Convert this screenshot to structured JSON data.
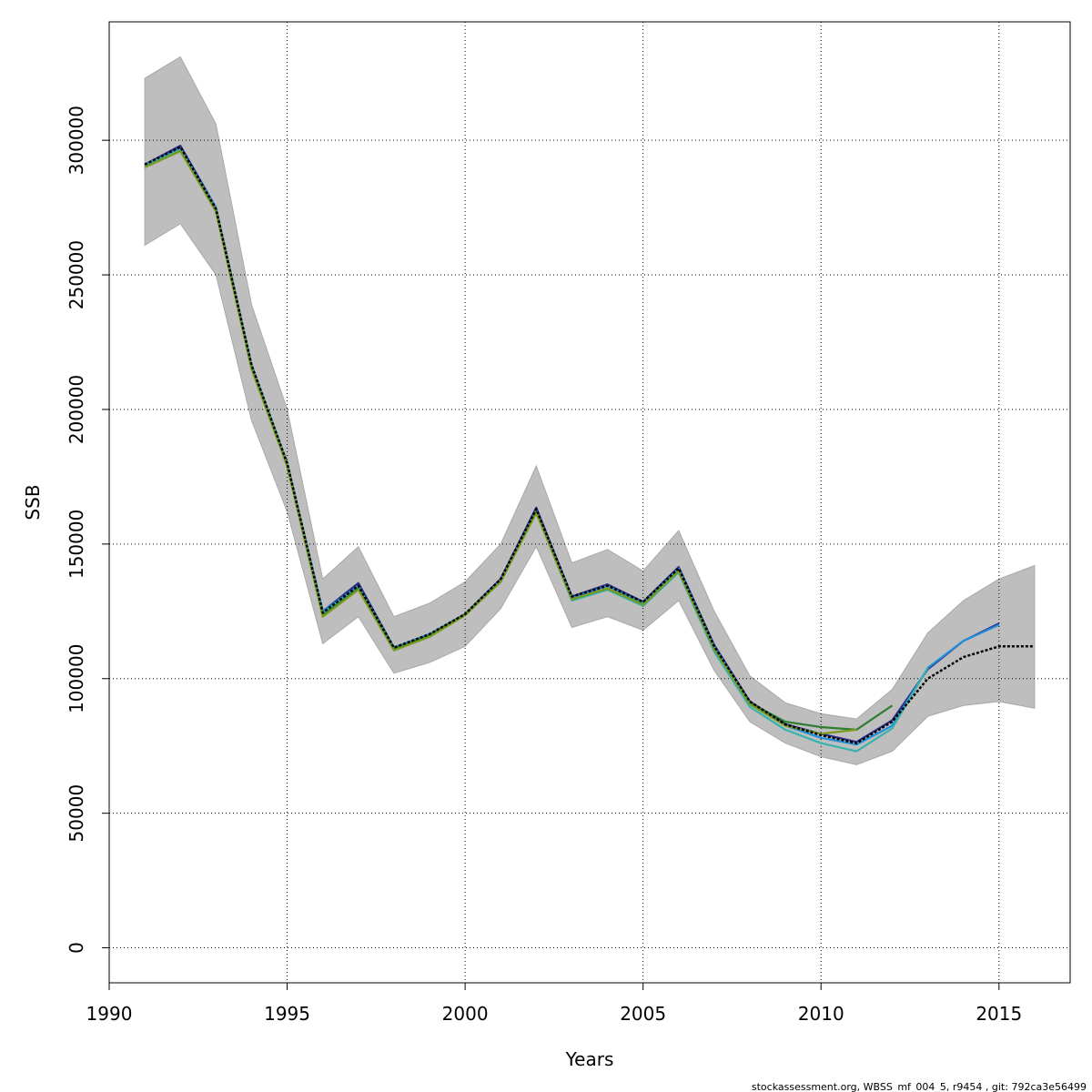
{
  "chart_data": {
    "type": "line",
    "title": "",
    "xlabel": "Years",
    "ylabel": "SSB",
    "xlim": [
      1990,
      2017
    ],
    "ylim": [
      -13000,
      344000
    ],
    "x_ticks": [
      1990,
      1995,
      2000,
      2005,
      2010,
      2015
    ],
    "y_ticks": [
      0,
      50000,
      100000,
      150000,
      200000,
      250000,
      300000
    ],
    "grid": true,
    "grid_style": "dotted",
    "confidence_band": {
      "color": "#bebebe",
      "x": [
        1991,
        1992,
        1993,
        1994,
        1995,
        1996,
        1997,
        1998,
        1999,
        2000,
        2001,
        2002,
        2003,
        2004,
        2005,
        2006,
        2007,
        2008,
        2009,
        2010,
        2011,
        2012,
        2013,
        2014,
        2015,
        2016
      ],
      "lower": [
        261000,
        269000,
        250000,
        196000,
        162000,
        113000,
        123000,
        102000,
        106000,
        112000,
        126000,
        149000,
        119000,
        123000,
        118000,
        129000,
        103000,
        84000,
        76000,
        71000,
        68000,
        73000,
        86000,
        90000,
        91500,
        89000
      ],
      "upper": [
        323000,
        331000,
        306000,
        239000,
        200000,
        137000,
        149000,
        123000,
        128000,
        136000,
        150000,
        179000,
        143000,
        148000,
        140000,
        155000,
        125000,
        101000,
        91000,
        87000,
        85000,
        96000,
        117000,
        129000,
        137000,
        142000
      ]
    },
    "series": [
      {
        "color": "#000000",
        "dashed": true,
        "x": [
          1991,
          1992,
          1993,
          1994,
          1995,
          1996,
          1997,
          1998,
          1999,
          2000,
          2001,
          2002,
          2003,
          2004,
          2005,
          2006,
          2007,
          2008,
          2009,
          2010,
          2011,
          2012,
          2013,
          2014,
          2015,
          2016
        ],
        "values": [
          291000,
          297500,
          274500,
          216500,
          180000,
          124500,
          134500,
          111500,
          116500,
          124000,
          137000,
          163000,
          130500,
          134500,
          128500,
          141000,
          112000,
          91500,
          83000,
          79000,
          76000,
          84000,
          100000,
          108000,
          112000,
          112000
        ]
      },
      {
        "color": "#2b2b8c",
        "dashed": false,
        "x": [
          1991,
          1992,
          1993,
          1994,
          1995,
          1996,
          1997,
          1998,
          1999,
          2000,
          2001,
          2002,
          2003,
          2004,
          2005,
          2006,
          2007,
          2008,
          2009,
          2010,
          2011,
          2012,
          2013,
          2014,
          2015
        ],
        "values": [
          291000,
          298000,
          275000,
          216500,
          180000,
          125000,
          135500,
          111500,
          116500,
          124000,
          137000,
          163500,
          130500,
          135000,
          128500,
          141500,
          112500,
          91500,
          83000,
          79500,
          76500,
          84500,
          103500,
          114000,
          120500
        ]
      },
      {
        "color": "#1e8fd8",
        "dashed": false,
        "x": [
          1991,
          1992,
          1993,
          1994,
          1995,
          1996,
          1997,
          1998,
          1999,
          2000,
          2001,
          2002,
          2003,
          2004,
          2005,
          2006,
          2007,
          2008,
          2009,
          2010,
          2011,
          2012,
          2013,
          2014,
          2015
        ],
        "values": [
          291000,
          297000,
          275000,
          216500,
          180000,
          125000,
          134500,
          111500,
          116500,
          124000,
          136500,
          162500,
          130000,
          134500,
          128000,
          141000,
          112000,
          91000,
          82500,
          78000,
          75500,
          82500,
          104000,
          114000,
          120000
        ]
      },
      {
        "color": "#38b2ad",
        "dashed": false,
        "x": [
          1991,
          1992,
          1993,
          1994,
          1995,
          1996,
          1997,
          1998,
          1999,
          2000,
          2001,
          2002,
          2003,
          2004,
          2005,
          2006,
          2007,
          2008,
          2009,
          2010,
          2011,
          2012,
          2013
        ],
        "values": [
          290500,
          296500,
          274500,
          216000,
          179500,
          124000,
          134000,
          111000,
          116000,
          124000,
          136000,
          162000,
          129000,
          133000,
          127000,
          139500,
          110000,
          89500,
          81000,
          76000,
          73000,
          81500,
          104000
        ]
      },
      {
        "color": "#2e7d32",
        "dashed": false,
        "x": [
          1991,
          1992,
          1993,
          1994,
          1995,
          1996,
          1997,
          1998,
          1999,
          2000,
          2001,
          2002,
          2003,
          2004,
          2005,
          2006,
          2007,
          2008,
          2009,
          2010,
          2011,
          2012
        ],
        "values": [
          290000,
          296000,
          274000,
          215500,
          179000,
          123500,
          133500,
          111000,
          116000,
          124000,
          136000,
          162000,
          129500,
          133500,
          127500,
          140000,
          111000,
          91000,
          84000,
          82000,
          81000,
          90000
        ]
      },
      {
        "color": "#7a9a1a",
        "dashed": false,
        "x": [
          1991,
          1992,
          1993,
          1994,
          1995,
          1996,
          1997,
          1998,
          1999,
          2000,
          2001,
          2002,
          2003,
          2004,
          2005,
          2006,
          2007,
          2008,
          2009,
          2010,
          2011
        ],
        "values": [
          290000,
          296000,
          273500,
          215000,
          179000,
          123000,
          133000,
          110500,
          115500,
          123500,
          136000,
          161500,
          129500,
          133500,
          127500,
          140000,
          111000,
          90500,
          82500,
          79500,
          81000
        ]
      }
    ]
  },
  "footer": {
    "text": "stockassessment.org, WBSS_mf_004_5, r9454 , git: 792ca3e56499"
  }
}
